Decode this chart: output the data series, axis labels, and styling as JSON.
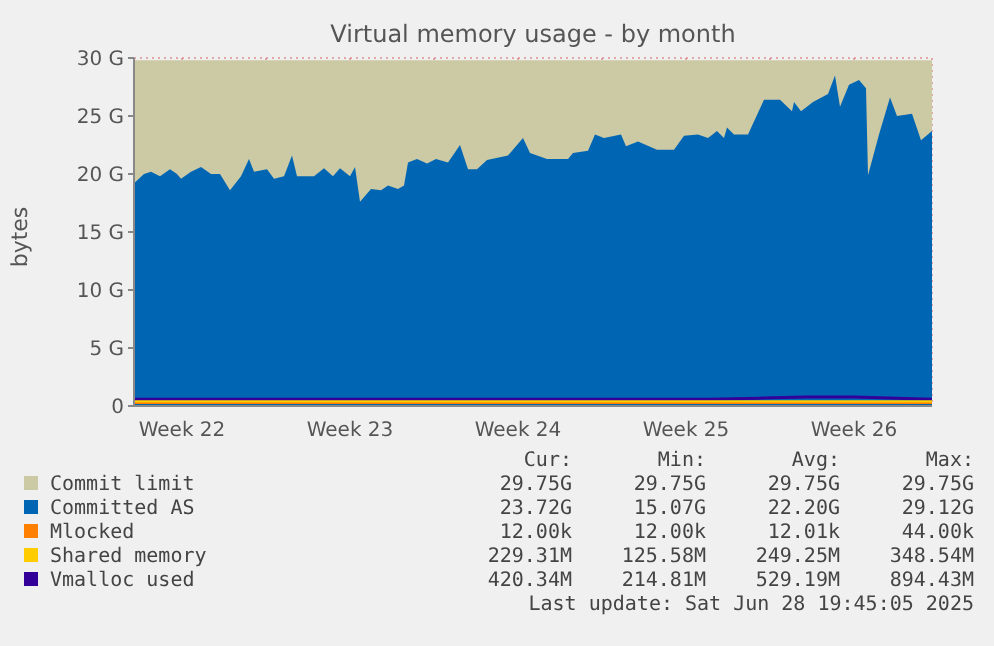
{
  "chart_data": {
    "type": "area",
    "title": "Virtual memory usage - by month",
    "ylabel": "bytes",
    "xlim": [
      "2025-05-27T12:00",
      "2025-06-29T18:00"
    ],
    "xticks": [
      {
        "value": "2025-05-29T12:00",
        "label": "Week 22"
      },
      {
        "value": "2025-06-02T00:00",
        "label": null
      },
      {
        "value": "2025-06-05T12:00",
        "label": "Week 23"
      },
      {
        "value": "2025-06-09T00:00",
        "label": null
      },
      {
        "value": "2025-06-12T12:00",
        "label": "Week 24"
      },
      {
        "value": "2025-06-16T00:00",
        "label": null
      },
      {
        "value": "2025-06-19T12:00",
        "label": "Week 25"
      },
      {
        "value": "2025-06-23T00:00",
        "label": null
      },
      {
        "value": "2025-06-26T12:00",
        "label": "Week 26"
      }
    ],
    "ylim": [
      0,
      30
    ],
    "yticks": [
      0,
      {
        "value": 5,
        "label": "5 G"
      },
      {
        "value": 10,
        "label": "10 G"
      },
      {
        "value": 15,
        "label": "15 G"
      },
      {
        "value": 20,
        "label": "20 G"
      },
      {
        "value": 25,
        "label": "25 G"
      },
      {
        "value": 30,
        "label": "30 G"
      }
    ],
    "grid": true,
    "legend": "bottom",
    "series": [
      {
        "name": "Commit limit",
        "color": "#ccc9a5",
        "x": [
          "2025-05-27T12:00",
          "2025-06-29T18:00"
        ],
        "values": [
          29.8,
          29.8
        ]
      },
      {
        "name": "Committed AS",
        "color": "#0066b3",
        "x": [
          "2025-05-27T12:00",
          "2025-05-27T22:00",
          "2025-05-28T05:00",
          "2025-05-28T14:00",
          "2025-05-29T00:00",
          "2025-05-29T07:00",
          "2025-05-29T11:00",
          "2025-05-29T21:00",
          "2025-05-30T07:00",
          "2025-05-30T17:00",
          "2025-05-31T02:00",
          "2025-05-31T12:00",
          "2025-05-31T23:00",
          "2025-06-01T07:00",
          "2025-06-01T12:00",
          "2025-06-02T01:00",
          "2025-06-02T08:00",
          "2025-06-02T18:00",
          "2025-06-03T02:00",
          "2025-06-03T07:00",
          "2025-06-04T00:00",
          "2025-06-04T10:00",
          "2025-06-04T19:00",
          "2025-06-05T02:00",
          "2025-06-05T12:00",
          "2025-06-05T17:00",
          "2025-06-05T22:00",
          "2025-06-06T09:00",
          "2025-06-06T19:00",
          "2025-06-07T02:00",
          "2025-06-07T12:00",
          "2025-06-07T18:00",
          "2025-06-07T22:00",
          "2025-06-08T07:00",
          "2025-06-08T17:00",
          "2025-06-09T02:00",
          "2025-06-09T14:00",
          "2025-06-10T02:00",
          "2025-06-10T10:00",
          "2025-06-10T19:00",
          "2025-06-11T05:00",
          "2025-06-12T02:00",
          "2025-06-12T17:00",
          "2025-06-13T00:00",
          "2025-06-13T17:00",
          "2025-06-14T14:00",
          "2025-06-14T19:00",
          "2025-06-15T10:00",
          "2025-06-15T17:00",
          "2025-06-16T02:00",
          "2025-06-16T19:00",
          "2025-06-17T00:00",
          "2025-06-17T12:00",
          "2025-06-18T07:00",
          "2025-06-19T00:00",
          "2025-06-19T10:00",
          "2025-06-20T00:00",
          "2025-06-20T10:00",
          "2025-06-20T19:00",
          "2025-06-21T02:00",
          "2025-06-21T05:00",
          "2025-06-21T12:00",
          "2025-06-22T02:00",
          "2025-06-22T18:00",
          "2025-06-23T10:00",
          "2025-06-23T22:00",
          "2025-06-24T00:00",
          "2025-06-24T07:00",
          "2025-06-24T19:00",
          "2025-06-25T10:00",
          "2025-06-25T17:00",
          "2025-06-25T22:00",
          "2025-06-26T07:00",
          "2025-06-26T17:00",
          "2025-06-27T00:00",
          "2025-06-27T02:00",
          "2025-06-27T13:00",
          "2025-06-28T00:00",
          "2025-06-28T07:00",
          "2025-06-28T22:00",
          "2025-06-29T07:00",
          "2025-06-29T18:00"
        ],
        "values": [
          19.2,
          20.0,
          20.2,
          19.8,
          20.4,
          20.0,
          19.6,
          20.2,
          20.6,
          20.0,
          20.0,
          18.6,
          19.8,
          21.3,
          20.2,
          20.4,
          19.6,
          19.8,
          21.6,
          19.8,
          19.8,
          20.5,
          19.8,
          20.5,
          19.8,
          20.6,
          17.6,
          18.7,
          18.6,
          19.0,
          18.7,
          19.0,
          21.0,
          21.3,
          20.9,
          21.3,
          21.0,
          22.5,
          20.4,
          20.4,
          21.2,
          21.6,
          23.1,
          21.8,
          21.3,
          21.3,
          21.8,
          22.0,
          23.4,
          23.1,
          23.4,
          22.4,
          22.8,
          22.1,
          22.1,
          23.3,
          23.4,
          23.1,
          23.7,
          23.1,
          24.0,
          23.4,
          23.4,
          26.4,
          26.4,
          25.4,
          26.2,
          25.4,
          26.2,
          26.9,
          28.5,
          25.8,
          27.7,
          28.1,
          27.4,
          19.9,
          23.4,
          26.6,
          25.0,
          25.2,
          22.9,
          23.7
        ]
      },
      {
        "name": "Mlocked",
        "type": "line",
        "color": "#ff8000",
        "x": [
          "2025-05-27T12:00",
          "2025-06-29T18:00"
        ],
        "values": [
          0,
          0
        ]
      },
      {
        "name": "Shared memory",
        "type": "line",
        "color": "#ffcc00",
        "x": [
          "2025-05-27T12:00",
          "2025-06-29T18:00"
        ],
        "values": [
          0.2,
          0.2
        ]
      },
      {
        "name": "Vmalloc used",
        "type": "line",
        "color": "#330099",
        "x": [
          "2025-05-27T12:00",
          "2025-06-20T12:00",
          "2025-06-22T12:00",
          "2025-06-24T12:00",
          "2025-06-26T12:00",
          "2025-06-29T18:00"
        ],
        "values": [
          0.4,
          0.4,
          0.5,
          0.6,
          0.6,
          0.4
        ]
      }
    ],
    "annotations": [
      "Cur:",
      "Min:",
      "Avg:",
      "Max:",
      "29.75G",
      "29.75G",
      "29.75G",
      "29.75G",
      "23.72G",
      "15.07G",
      "22.20G",
      "29.12G",
      "12.00k",
      "12.00k",
      "12.01k",
      "44.00k",
      "229.31M",
      "125.58M",
      "249.25M",
      "348.54M",
      "420.34M",
      "214.81M",
      "529.19M",
      "894.43M",
      "Last update: Sat Jun 28 19:45:05 2025"
    ]
  }
}
